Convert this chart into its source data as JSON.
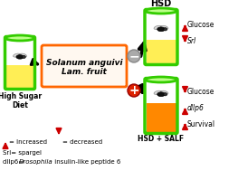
{
  "bg_color": "#ffffff",
  "jar_green_border": "#33cc00",
  "jar_yellow_fill": "#ffee55",
  "jar_orange_fill": "#ff8800",
  "arrow_color_red": "#cc0000",
  "box_edge_color": "#ff6600",
  "box_face_color": "#fff8f0",
  "text_solanum_line1": "Solanum anguivi",
  "text_solanum_line2": "Lam. fruit",
  "text_hsd": "HSD",
  "text_hsd_salf": "HSD + SALF",
  "text_high_sugar": "High Sugar\nDiet",
  "text_glucose1": "Glucose",
  "text_srl": "Srl",
  "text_glucose2": "Glucose",
  "text_dllp6": "dllp6",
  "text_survival": "Survival",
  "legend_increased": "= Increased",
  "legend_decreased": "= decreased",
  "legend_srl_plain": "Srl= spargel",
  "legend_dllp6_prefix": "dllp6= ",
  "legend_dllp6_italic": "Drosophila",
  "legend_dllp6_suffix": " insulin-like peptide 6",
  "minus_face_color": "#aaaaaa",
  "plus_face_color": "#dd2200"
}
